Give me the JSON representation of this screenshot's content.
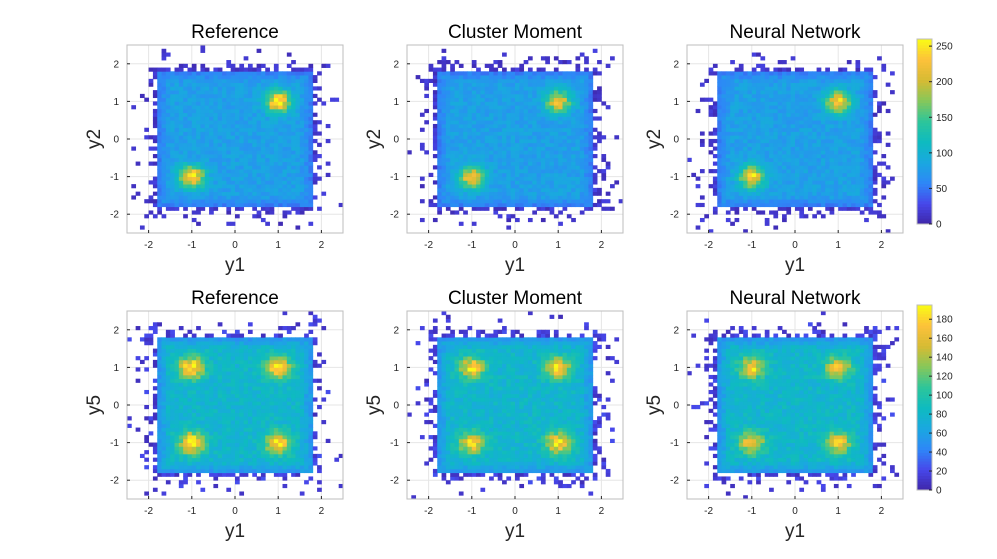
{
  "chart_data": {
    "type": "heatmap",
    "colormap": "parula",
    "colormap_stops": [
      "#3e26a8",
      "#4747ea",
      "#2e87f7",
      "#1aa8e0",
      "#0ebbc0",
      "#2dc59a",
      "#86c75a",
      "#d6bb33",
      "#fdc13a",
      "#f9fb15"
    ],
    "rows": [
      {
        "colorbar": {
          "max": 260,
          "ticks": [
            0,
            50,
            100,
            150,
            200,
            250
          ]
        },
        "panels": [
          {
            "title": "Reference",
            "xlabel": "y1",
            "ylabel": "y2",
            "xlim": [
              -2.5,
              2.5
            ],
            "ylim": [
              -2.5,
              2.5
            ],
            "xticks": [
              -2,
              -1,
              0,
              1,
              2
            ],
            "yticks": [
              -2,
              -1,
              0,
              1,
              2
            ],
            "grid": true,
            "support_box": [
              -1.85,
              1.85,
              -1.85,
              1.85
            ],
            "hotspots": [
              {
                "x": -1.0,
                "y": -1.0,
                "peak": 250
              },
              {
                "x": 1.0,
                "y": 1.0,
                "peak": 250
              }
            ]
          },
          {
            "title": "Cluster Moment",
            "xlabel": "y1",
            "ylabel": "y2",
            "xlim": [
              -2.5,
              2.5
            ],
            "ylim": [
              -2.5,
              2.5
            ],
            "xticks": [
              -2,
              -1,
              0,
              1,
              2
            ],
            "yticks": [
              -2,
              -1,
              0,
              1,
              2
            ],
            "grid": true,
            "support_box": [
              -1.85,
              1.85,
              -1.85,
              1.85
            ],
            "hotspots": [
              {
                "x": -1.0,
                "y": -1.0,
                "peak": 220
              },
              {
                "x": 1.0,
                "y": 1.0,
                "peak": 220
              }
            ]
          },
          {
            "title": "Neural Network",
            "xlabel": "y1",
            "ylabel": "y2",
            "xlim": [
              -2.5,
              2.5
            ],
            "ylim": [
              -2.5,
              2.5
            ],
            "xticks": [
              -2,
              -1,
              0,
              1,
              2
            ],
            "yticks": [
              -2,
              -1,
              0,
              1,
              2
            ],
            "grid": true,
            "support_box": [
              -1.85,
              1.85,
              -1.85,
              1.85
            ],
            "hotspots": [
              {
                "x": -1.0,
                "y": -1.0,
                "peak": 230
              },
              {
                "x": 1.0,
                "y": 1.0,
                "peak": 230
              }
            ]
          }
        ]
      },
      {
        "colorbar": {
          "max": 195,
          "ticks": [
            0,
            20,
            40,
            60,
            80,
            100,
            120,
            140,
            160,
            180
          ]
        },
        "panels": [
          {
            "title": "Reference",
            "xlabel": "y1",
            "ylabel": "y5",
            "xlim": [
              -2.5,
              2.5
            ],
            "ylim": [
              -2.5,
              2.5
            ],
            "xticks": [
              -2,
              -1,
              0,
              1,
              2
            ],
            "yticks": [
              -2,
              -1,
              0,
              1,
              2
            ],
            "grid": true,
            "support_box": [
              -1.85,
              1.85,
              -1.85,
              1.85
            ],
            "hotspots": [
              {
                "x": -1.0,
                "y": 1.0,
                "peak": 185
              },
              {
                "x": 1.0,
                "y": 1.0,
                "peak": 185
              },
              {
                "x": -1.0,
                "y": -1.0,
                "peak": 185
              },
              {
                "x": 1.0,
                "y": -1.0,
                "peak": 185
              }
            ]
          },
          {
            "title": "Cluster Moment",
            "xlabel": "y1",
            "ylabel": "y5",
            "xlim": [
              -2.5,
              2.5
            ],
            "ylim": [
              -2.5,
              2.5
            ],
            "xticks": [
              -2,
              -1,
              0,
              1,
              2
            ],
            "yticks": [
              -2,
              -1,
              0,
              1,
              2
            ],
            "grid": true,
            "support_box": [
              -1.85,
              1.85,
              -1.85,
              1.85
            ],
            "hotspots": [
              {
                "x": -1.0,
                "y": 1.0,
                "peak": 170
              },
              {
                "x": 1.0,
                "y": 1.0,
                "peak": 170
              },
              {
                "x": -1.0,
                "y": -1.0,
                "peak": 170
              },
              {
                "x": 1.0,
                "y": -1.0,
                "peak": 170
              }
            ]
          },
          {
            "title": "Neural Network",
            "xlabel": "y1",
            "ylabel": "y5",
            "xlim": [
              -2.5,
              2.5
            ],
            "ylim": [
              -2.5,
              2.5
            ],
            "xticks": [
              -2,
              -1,
              0,
              1,
              2
            ],
            "yticks": [
              -2,
              -1,
              0,
              1,
              2
            ],
            "grid": true,
            "support_box": [
              -1.85,
              1.85,
              -1.85,
              1.85
            ],
            "hotspots": [
              {
                "x": -1.0,
                "y": 1.0,
                "peak": 165
              },
              {
                "x": 1.0,
                "y": 1.0,
                "peak": 165
              },
              {
                "x": -1.0,
                "y": -1.0,
                "peak": 165
              },
              {
                "x": 1.0,
                "y": -1.0,
                "peak": 165
              }
            ]
          }
        ]
      }
    ]
  }
}
